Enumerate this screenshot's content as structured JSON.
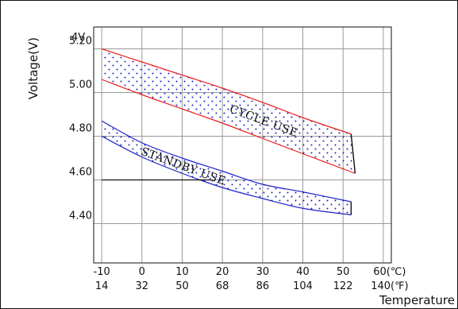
{
  "chart_data": {
    "type": "area",
    "title": "",
    "xlabel": "Temperature",
    "ylabel": "Voltage(V)",
    "y_unit_label": "4V",
    "x_unit_celsius": "(℃)",
    "x_unit_fahrenheit": "(℉)",
    "xlim": [
      -12,
      62
    ],
    "ylim": [
      4.22,
      5.3
    ],
    "grid": true,
    "x_ticks": [
      {
        "c": "-10",
        "f": "14",
        "value": -10
      },
      {
        "c": "0",
        "f": "32",
        "value": 0
      },
      {
        "c": "10",
        "f": "50",
        "value": 10
      },
      {
        "c": "20",
        "f": "68",
        "value": 20
      },
      {
        "c": "30",
        "f": "86",
        "value": 30
      },
      {
        "c": "40",
        "f": "104",
        "value": 40
      },
      {
        "c": "50",
        "f": "122",
        "value": 50
      },
      {
        "c": "60",
        "f": "140",
        "value": 60
      }
    ],
    "y_ticks": [
      {
        "label": "5.20",
        "value": 5.2
      },
      {
        "label": "5.00",
        "value": 5.0
      },
      {
        "label": "4.80",
        "value": 4.8
      },
      {
        "label": "4.60",
        "value": 4.6
      },
      {
        "label": "4.40",
        "value": 4.4
      }
    ],
    "series": [
      {
        "name": "CYCLE USE",
        "color": "#e8201e",
        "upper": [
          [
            -10,
            5.2
          ],
          [
            0,
            5.14
          ],
          [
            10,
            5.08
          ],
          [
            20,
            5.02
          ],
          [
            30,
            4.955
          ],
          [
            40,
            4.885
          ],
          [
            52,
            4.81
          ]
        ],
        "lower": [
          [
            -10,
            5.06
          ],
          [
            0,
            4.99
          ],
          [
            10,
            4.925
          ],
          [
            20,
            4.86
          ],
          [
            30,
            4.79
          ],
          [
            40,
            4.72
          ],
          [
            53,
            4.63
          ]
        ]
      },
      {
        "name": "STANDBY USE",
        "color": "#1a22c8",
        "upper": [
          [
            -10,
            4.87
          ],
          [
            0,
            4.77
          ],
          [
            10,
            4.7
          ],
          [
            20,
            4.64
          ],
          [
            30,
            4.58
          ],
          [
            40,
            4.545
          ],
          [
            52,
            4.5
          ]
        ],
        "lower": [
          [
            -10,
            4.8
          ],
          [
            0,
            4.705
          ],
          [
            10,
            4.63
          ],
          [
            20,
            4.565
          ],
          [
            30,
            4.515
          ],
          [
            40,
            4.47
          ],
          [
            52,
            4.44
          ]
        ]
      }
    ],
    "reference_line": {
      "y": 4.6,
      "x_start": -10,
      "x_end": 17
    }
  }
}
